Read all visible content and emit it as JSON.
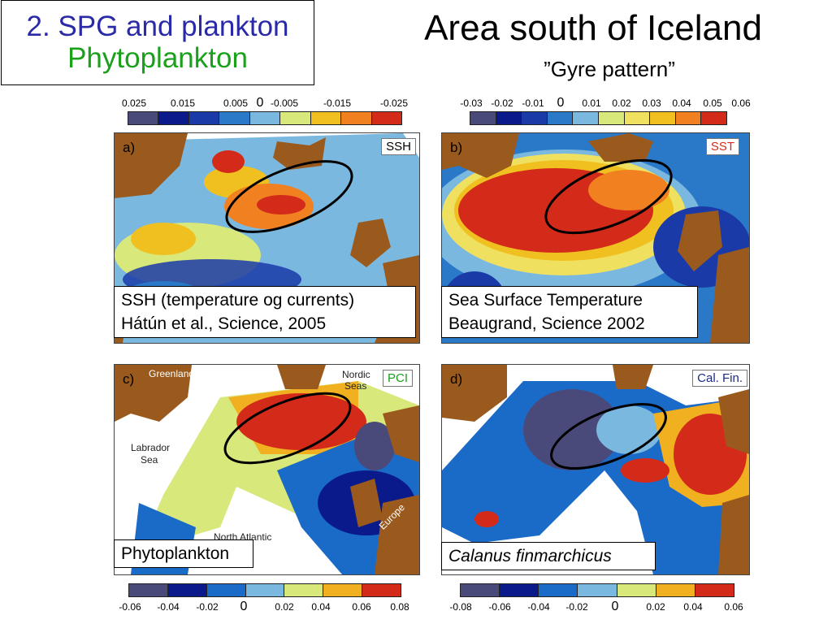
{
  "header": {
    "section_title": "2. SPG and plankton",
    "section_subtitle": "Phytoplankton",
    "main_title": "Area south of Iceland",
    "subtitle": "”Gyre pattern”"
  },
  "colorbars": {
    "ssh": {
      "labels": [
        "0.025",
        "0.015",
        "0.005",
        "0",
        "-0.005",
        "-0.015",
        "-0.025"
      ],
      "colors": [
        "#4a4a7a",
        "#0a1a8a",
        "#1a3aa8",
        "#2a78c8",
        "#7ab8e0",
        "#d8e87a",
        "#f0c020",
        "#f08020",
        "#d42a1a"
      ]
    },
    "sst": {
      "labels": [
        "-0.03",
        "-0.02",
        "-0.01",
        "0",
        "0.01",
        "0.02",
        "0.03",
        "0.04",
        "0.05",
        "0.06"
      ],
      "colors": [
        "#4a4a7a",
        "#0a1a8a",
        "#1a3aa8",
        "#2a78c8",
        "#7ab8e0",
        "#d8e87a",
        "#f0e060",
        "#f0c020",
        "#f08020",
        "#d42a1a"
      ]
    },
    "pci": {
      "labels": [
        "-0.06",
        "-0.04",
        "-0.02",
        "0",
        "0.02",
        "0.04",
        "0.06",
        "0.08"
      ],
      "colors": [
        "#4a4a7a",
        "#0a1a8a",
        "#1a6ac8",
        "#7ab8e0",
        "#d8e87a",
        "#f0b020",
        "#d42a1a"
      ]
    },
    "cal": {
      "labels": [
        "-0.08",
        "-0.06",
        "-0.04",
        "-0.02",
        "0",
        "0.02",
        "0.04",
        "0.06"
      ],
      "colors": [
        "#4a4a7a",
        "#0a1a8a",
        "#1a6ac8",
        "#7ab8e0",
        "#d8e87a",
        "#f0b020",
        "#d42a1a"
      ]
    }
  },
  "panels": {
    "a": {
      "letter": "a)",
      "tag": "SSH",
      "tag_color": "#000000",
      "caption_line1": "SSH (temperature og currents)",
      "caption_line2": "Hátún et al., Science, 2005"
    },
    "b": {
      "letter": "b)",
      "tag": "SST",
      "tag_color": "#d42a1a",
      "caption_line1": "Sea Surface Temperature",
      "caption_line2": "Beaugrand, Science 2002"
    },
    "c": {
      "letter": "c)",
      "tag": "PCI",
      "tag_color": "#1aa01a",
      "caption": "Phytoplankton",
      "labels": {
        "greenland": "Greenland",
        "nordic": "Nordic",
        "seas": "Seas",
        "labrador": "Labrador",
        "sea": "Sea",
        "north_atlantic": "North Atlantic",
        "europe": "Europe"
      }
    },
    "d": {
      "letter": "d)",
      "tag": "Cal. Fin.",
      "tag_color": "#1a2a8a",
      "caption": "Calanus finmarchicus"
    }
  }
}
